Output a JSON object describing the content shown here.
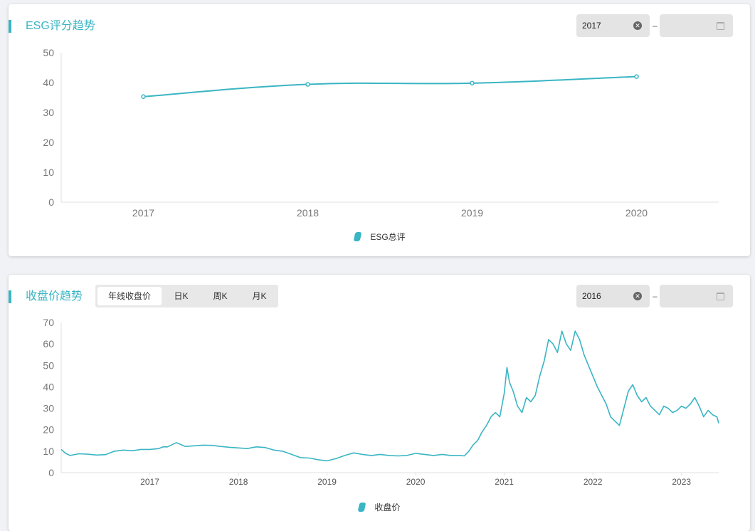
{
  "colors": {
    "accent": "#3ab5c3",
    "axis": "#e0e0e0",
    "tick_text": "#777"
  },
  "esg_panel": {
    "title": "ESG评分趋势",
    "date_start": "2017",
    "date_end": "",
    "clear_icon": "clear-icon",
    "calendar_icon": "calendar-icon"
  },
  "price_panel": {
    "title": "收盘价趋势",
    "tabs": [
      {
        "label": "年线收盘价",
        "active": true
      },
      {
        "label": "日K",
        "active": false
      },
      {
        "label": "周K",
        "active": false
      },
      {
        "label": "月K",
        "active": false
      }
    ],
    "date_start": "2016",
    "date_end": "",
    "clear_icon": "clear-icon",
    "calendar_icon": "calendar-icon"
  },
  "chart_data": [
    {
      "type": "line",
      "title": "ESG评分趋势",
      "categories": [
        "2017",
        "2018",
        "2019",
        "2020"
      ],
      "series": [
        {
          "name": "ESG总评",
          "values": [
            35.3,
            39.4,
            39.8,
            42.0
          ]
        }
      ],
      "ylim": [
        0,
        50
      ],
      "yticks": [
        0,
        10,
        20,
        30,
        40,
        50
      ],
      "smooth": true,
      "markers": true,
      "grid": false,
      "legend": "bottom-center"
    },
    {
      "type": "line",
      "title": "收盘价趋势",
      "x_range": [
        2016.0,
        2023.42
      ],
      "xticks": [
        "2017",
        "2018",
        "2019",
        "2020",
        "2021",
        "2022",
        "2023"
      ],
      "ylim": [
        0,
        70
      ],
      "yticks": [
        0,
        10,
        20,
        30,
        40,
        50,
        60,
        70
      ],
      "series": [
        {
          "name": "收盘价",
          "x": [
            2016.0,
            2016.05,
            2016.1,
            2016.2,
            2016.3,
            2016.4,
            2016.5,
            2016.6,
            2016.7,
            2016.8,
            2016.9,
            2017.0,
            2017.1,
            2017.15,
            2017.2,
            2017.3,
            2017.4,
            2017.5,
            2017.6,
            2017.7,
            2017.8,
            2017.9,
            2018.0,
            2018.1,
            2018.2,
            2018.3,
            2018.4,
            2018.5,
            2018.6,
            2018.7,
            2018.8,
            2018.9,
            2019.0,
            2019.1,
            2019.2,
            2019.3,
            2019.4,
            2019.5,
            2019.6,
            2019.7,
            2019.8,
            2019.9,
            2020.0,
            2020.1,
            2020.2,
            2020.3,
            2020.4,
            2020.5,
            2020.55,
            2020.6,
            2020.65,
            2020.7,
            2020.75,
            2020.8,
            2020.85,
            2020.9,
            2020.95,
            2021.0,
            2021.03,
            2021.06,
            2021.1,
            2021.15,
            2021.2,
            2021.25,
            2021.3,
            2021.35,
            2021.4,
            2021.45,
            2021.5,
            2021.55,
            2021.6,
            2021.65,
            2021.7,
            2021.75,
            2021.8,
            2021.85,
            2021.9,
            2021.95,
            2022.0,
            2022.05,
            2022.1,
            2022.15,
            2022.2,
            2022.25,
            2022.3,
            2022.35,
            2022.4,
            2022.45,
            2022.5,
            2022.55,
            2022.6,
            2022.65,
            2022.7,
            2022.75,
            2022.8,
            2022.85,
            2022.9,
            2022.95,
            2023.0,
            2023.05,
            2023.1,
            2023.15,
            2023.2,
            2023.25,
            2023.3,
            2023.35,
            2023.4,
            2023.42
          ],
          "values": [
            10.8,
            9.0,
            8.0,
            8.8,
            8.6,
            8.2,
            8.4,
            10.0,
            10.5,
            10.2,
            10.8,
            10.8,
            11.2,
            12.0,
            12.0,
            14.0,
            12.2,
            12.5,
            12.8,
            12.7,
            12.2,
            11.8,
            11.5,
            11.2,
            12.0,
            11.7,
            10.5,
            10.0,
            8.5,
            7.0,
            6.8,
            6.0,
            5.5,
            6.5,
            8.0,
            9.2,
            8.5,
            8.0,
            8.5,
            8.0,
            7.8,
            8.0,
            9.0,
            8.5,
            8.0,
            8.5,
            8.0,
            8.0,
            7.8,
            10.0,
            13.0,
            15.0,
            19.0,
            22.0,
            26.0,
            28.0,
            26.0,
            37.0,
            49.0,
            42.0,
            38.0,
            31.0,
            28.0,
            35.0,
            33.0,
            36.0,
            45.0,
            52.0,
            62.0,
            60.0,
            56.0,
            66.0,
            60.0,
            57.0,
            66.0,
            62.0,
            55.0,
            50.0,
            45.0,
            40.0,
            36.0,
            32.0,
            26.0,
            24.0,
            22.0,
            30.0,
            38.0,
            41.0,
            36.0,
            33.0,
            35.0,
            31.0,
            29.0,
            27.0,
            31.0,
            30.0,
            28.0,
            29.0,
            31.0,
            30.0,
            32.0,
            35.0,
            31.0,
            26.0,
            29.0,
            27.0,
            26.0,
            23.0
          ]
        }
      ],
      "grid": false,
      "legend": "bottom-center"
    }
  ]
}
